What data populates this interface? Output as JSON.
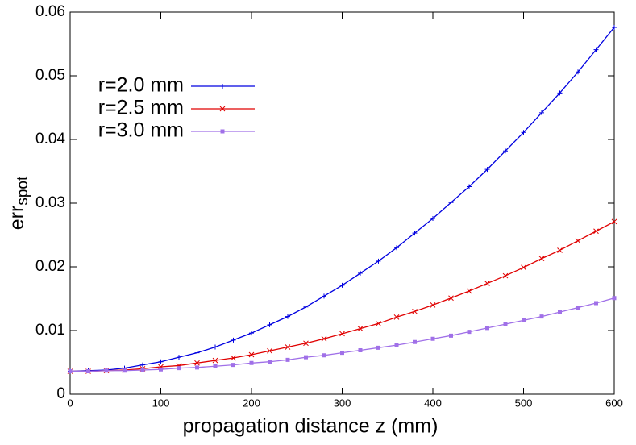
{
  "chart_data": {
    "type": "line",
    "xlabel": "propagation distance z (mm)",
    "ylabel": "err",
    "ylabel_subscript": "spot",
    "x": [
      0,
      20,
      40,
      60,
      80,
      100,
      120,
      140,
      160,
      180,
      200,
      220,
      240,
      260,
      280,
      300,
      320,
      340,
      360,
      380,
      400,
      420,
      440,
      460,
      480,
      500,
      520,
      540,
      560,
      580,
      600
    ],
    "series": [
      {
        "name": "r=2.0 mm",
        "color": "#0000e0",
        "marker": "plus",
        "values": [
          0.0036,
          0.0037,
          0.0038,
          0.0041,
          0.0046,
          0.0051,
          0.0058,
          0.0065,
          0.0074,
          0.0085,
          0.0096,
          0.0109,
          0.0122,
          0.0137,
          0.0154,
          0.0171,
          0.019,
          0.0209,
          0.023,
          0.0253,
          0.0276,
          0.0301,
          0.0326,
          0.0353,
          0.0382,
          0.0411,
          0.0442,
          0.0473,
          0.0506,
          0.0541,
          0.0576
        ]
      },
      {
        "name": "r=2.5 mm",
        "color": "#e00000",
        "marker": "cross",
        "values": [
          0.0036,
          0.0036,
          0.0037,
          0.0038,
          0.004,
          0.0043,
          0.0045,
          0.0049,
          0.0053,
          0.0057,
          0.0062,
          0.0068,
          0.0074,
          0.008,
          0.0087,
          0.0095,
          0.0103,
          0.0111,
          0.0121,
          0.013,
          0.014,
          0.0151,
          0.0162,
          0.0174,
          0.0186,
          0.0199,
          0.0213,
          0.0226,
          0.0241,
          0.0256,
          0.0271
        ]
      },
      {
        "name": "r=3.0 mm",
        "color": "#a070e8",
        "marker": "square",
        "values": [
          0.0036,
          0.0036,
          0.0037,
          0.0037,
          0.0038,
          0.0039,
          0.0041,
          0.0042,
          0.0044,
          0.0046,
          0.0049,
          0.0051,
          0.0054,
          0.0058,
          0.0061,
          0.0065,
          0.0069,
          0.0073,
          0.0077,
          0.0082,
          0.0087,
          0.0092,
          0.0098,
          0.0104,
          0.011,
          0.0116,
          0.0122,
          0.0129,
          0.0136,
          0.0143,
          0.0151
        ]
      }
    ],
    "xlim": [
      0,
      600
    ],
    "xticks": [
      0,
      100,
      200,
      300,
      400,
      500,
      600
    ],
    "ylim": [
      0,
      0.06
    ],
    "yticks": [
      0,
      0.01,
      0.02,
      0.03,
      0.04,
      0.05,
      0.06
    ],
    "legend": "upper-left"
  }
}
